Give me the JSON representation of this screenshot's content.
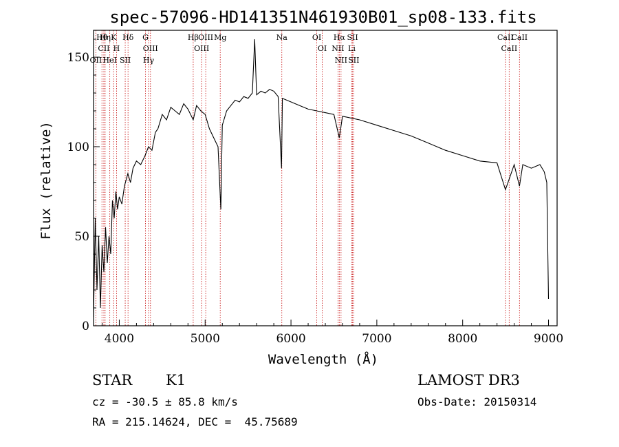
{
  "chart_data": {
    "type": "line",
    "title": "spec-57096-HD141351N461930B01_sp08-133.fits",
    "xlabel": "Wavelength (Å)",
    "ylabel": "Flux (relative)",
    "xlim": [
      3700,
      9100
    ],
    "ylim": [
      0,
      165
    ],
    "xticks": [
      4000,
      5000,
      6000,
      7000,
      8000,
      9000
    ],
    "yticks": [
      0,
      50,
      100,
      150
    ],
    "grid": false,
    "series": [
      {
        "name": "spectrum",
        "x": [
          3700,
          3720,
          3740,
          3760,
          3780,
          3800,
          3820,
          3840,
          3860,
          3880,
          3900,
          3920,
          3940,
          3960,
          3980,
          4000,
          4030,
          4060,
          4100,
          4130,
          4160,
          4200,
          4250,
          4300,
          4340,
          4380,
          4420,
          4450,
          4500,
          4550,
          4600,
          4650,
          4700,
          4750,
          4800,
          4861,
          4900,
          4950,
          5000,
          5050,
          5100,
          5150,
          5183,
          5200,
          5250,
          5300,
          5350,
          5400,
          5450,
          5500,
          5550,
          5577,
          5600,
          5650,
          5700,
          5750,
          5800,
          5850,
          5890,
          5900,
          5950,
          6000,
          6100,
          6200,
          6300,
          6400,
          6500,
          6563,
          6600,
          6700,
          6800,
          7000,
          7200,
          7400,
          7600,
          7800,
          8000,
          8200,
          8400,
          8498,
          8542,
          8600,
          8662,
          8700,
          8800,
          8900,
          8950,
          8980,
          9000
        ],
        "values": [
          5,
          60,
          20,
          50,
          10,
          45,
          30,
          55,
          35,
          50,
          40,
          70,
          60,
          75,
          65,
          72,
          68,
          78,
          85,
          80,
          88,
          92,
          90,
          95,
          100,
          98,
          108,
          110,
          118,
          115,
          122,
          120,
          118,
          124,
          121,
          115,
          123,
          120,
          118,
          110,
          105,
          100,
          65,
          112,
          120,
          123,
          126,
          125,
          128,
          127,
          130,
          160,
          129,
          131,
          130,
          132,
          131,
          128,
          88,
          127,
          126,
          125,
          123,
          121,
          120,
          119,
          118,
          105,
          117,
          116,
          115,
          112,
          109,
          106,
          102,
          98,
          95,
          92,
          91,
          76,
          82,
          90,
          78,
          90,
          88,
          90,
          86,
          80,
          15
        ]
      }
    ],
    "line_marks": [
      {
        "label": "Hθ",
        "wave": 3798
      },
      {
        "label": "CII",
        "wave": 3820
      },
      {
        "label": "OII",
        "wave": 3727
      },
      {
        "label": "Hη",
        "wave": 3835
      },
      {
        "label": "HeI",
        "wave": 3889
      },
      {
        "label": "K",
        "wave": 3934
      },
      {
        "label": "H",
        "wave": 3968
      },
      {
        "label": "SII",
        "wave": 4069
      },
      {
        "label": "Hδ",
        "wave": 4102
      },
      {
        "label": "G",
        "wave": 4305
      },
      {
        "label": "OIII",
        "wave": 4363
      },
      {
        "label": "Hγ",
        "wave": 4341
      },
      {
        "label": "Hβ",
        "wave": 4861
      },
      {
        "label": "OIII",
        "wave": 4959
      },
      {
        "label": "OIII",
        "wave": 5007
      },
      {
        "label": "Mg",
        "wave": 5176
      },
      {
        "label": "Na",
        "wave": 5893
      },
      {
        "label": "OI",
        "wave": 6300
      },
      {
        "label": "OI",
        "wave": 6364
      },
      {
        "label": "Hα",
        "wave": 6563
      },
      {
        "label": "NII",
        "wave": 6548
      },
      {
        "label": "NII",
        "wave": 6583
      },
      {
        "label": "SII",
        "wave": 6717
      },
      {
        "label": "Li",
        "wave": 6708
      },
      {
        "label": "SII",
        "wave": 6731
      },
      {
        "label": "CaII",
        "wave": 8498
      },
      {
        "label": "CaII",
        "wave": 8542
      },
      {
        "label": "CaII",
        "wave": 8662
      }
    ]
  },
  "info": {
    "object_class": "STAR",
    "subclass": "K1",
    "survey": "LAMOST DR3",
    "cz": "cz = -30.5 ± 85.8 km/s",
    "obs_date": "Obs-Date: 20150314",
    "coords": "RA = 215.14624, DEC =  45.75689"
  },
  "colors": {
    "spectrum": "#000000",
    "marker": "#cc2222"
  }
}
